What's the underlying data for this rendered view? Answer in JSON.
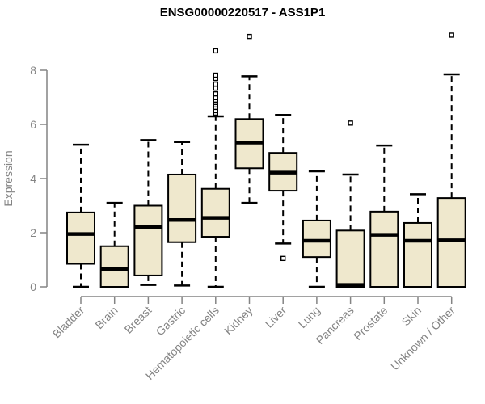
{
  "chart_data": {
    "type": "boxplot",
    "title": "ENSG00000220517 - ASS1P1",
    "xlabel": "",
    "ylabel": "Expression",
    "y_ticks": [
      0,
      2,
      4,
      6,
      8
    ],
    "ylim": [
      -0.4,
      9.6
    ],
    "grid": false,
    "legend": null,
    "colors": {
      "box_fill": "#EFE8CD",
      "box_stroke": "#000000",
      "median": "#000000",
      "whisker": "#000000",
      "outlier_stroke": "#000000",
      "axis": "#848484",
      "title": "#000000",
      "background": "#ffffff"
    },
    "categories": [
      "Bladder",
      "Brain",
      "Breast",
      "Gastric",
      "Hematopoietic cells",
      "Kidney",
      "Liver",
      "Lung",
      "Pancreas",
      "Prostate",
      "Skin",
      "Unknown / Other"
    ],
    "boxes": [
      {
        "name": "Bladder",
        "whisker_low": 0.0,
        "q1": 0.85,
        "median": 1.95,
        "q3": 2.75,
        "whisker_high": 5.25,
        "outliers": []
      },
      {
        "name": "Brain",
        "whisker_low": 0.0,
        "q1": 0.0,
        "median": 0.65,
        "q3": 1.5,
        "whisker_high": 3.1,
        "outliers": []
      },
      {
        "name": "Breast",
        "whisker_low": 0.07,
        "q1": 0.42,
        "median": 2.2,
        "q3": 3.0,
        "whisker_high": 5.42,
        "outliers": []
      },
      {
        "name": "Gastric",
        "whisker_low": 0.05,
        "q1": 1.65,
        "median": 2.47,
        "q3": 4.15,
        "whisker_high": 5.35,
        "outliers": []
      },
      {
        "name": "Hematopoietic cells",
        "whisker_low": 0.0,
        "q1": 1.85,
        "median": 2.55,
        "q3": 3.62,
        "whisker_high": 6.3,
        "outliers": [
          6.42,
          6.51,
          6.63,
          6.72,
          6.81,
          6.9,
          6.99,
          7.13,
          7.34,
          7.49,
          7.7,
          7.82,
          8.72
        ]
      },
      {
        "name": "Kidney",
        "whisker_low": 3.1,
        "q1": 4.38,
        "median": 5.33,
        "q3": 6.2,
        "whisker_high": 7.78,
        "outliers": [
          9.25
        ]
      },
      {
        "name": "Liver",
        "whisker_low": 1.6,
        "q1": 3.55,
        "median": 4.22,
        "q3": 4.95,
        "whisker_high": 6.35,
        "outliers": [
          1.05
        ]
      },
      {
        "name": "Lung",
        "whisker_low": 0.0,
        "q1": 1.1,
        "median": 1.7,
        "q3": 2.45,
        "whisker_high": 4.27,
        "outliers": []
      },
      {
        "name": "Pancreas",
        "whisker_low": 0.0,
        "q1": 0.0,
        "median": 0.07,
        "q3": 2.08,
        "whisker_high": 4.15,
        "outliers": [
          6.05
        ]
      },
      {
        "name": "Prostate",
        "whisker_low": 0.0,
        "q1": 0.0,
        "median": 1.92,
        "q3": 2.78,
        "whisker_high": 5.22,
        "outliers": []
      },
      {
        "name": "Skin",
        "whisker_low": 0.0,
        "q1": 0.0,
        "median": 1.7,
        "q3": 2.36,
        "whisker_high": 3.42,
        "outliers": []
      },
      {
        "name": "Unknown / Other",
        "whisker_low": 0.0,
        "q1": 0.0,
        "median": 1.72,
        "q3": 3.28,
        "whisker_high": 7.85,
        "outliers": [
          9.3
        ]
      }
    ]
  }
}
